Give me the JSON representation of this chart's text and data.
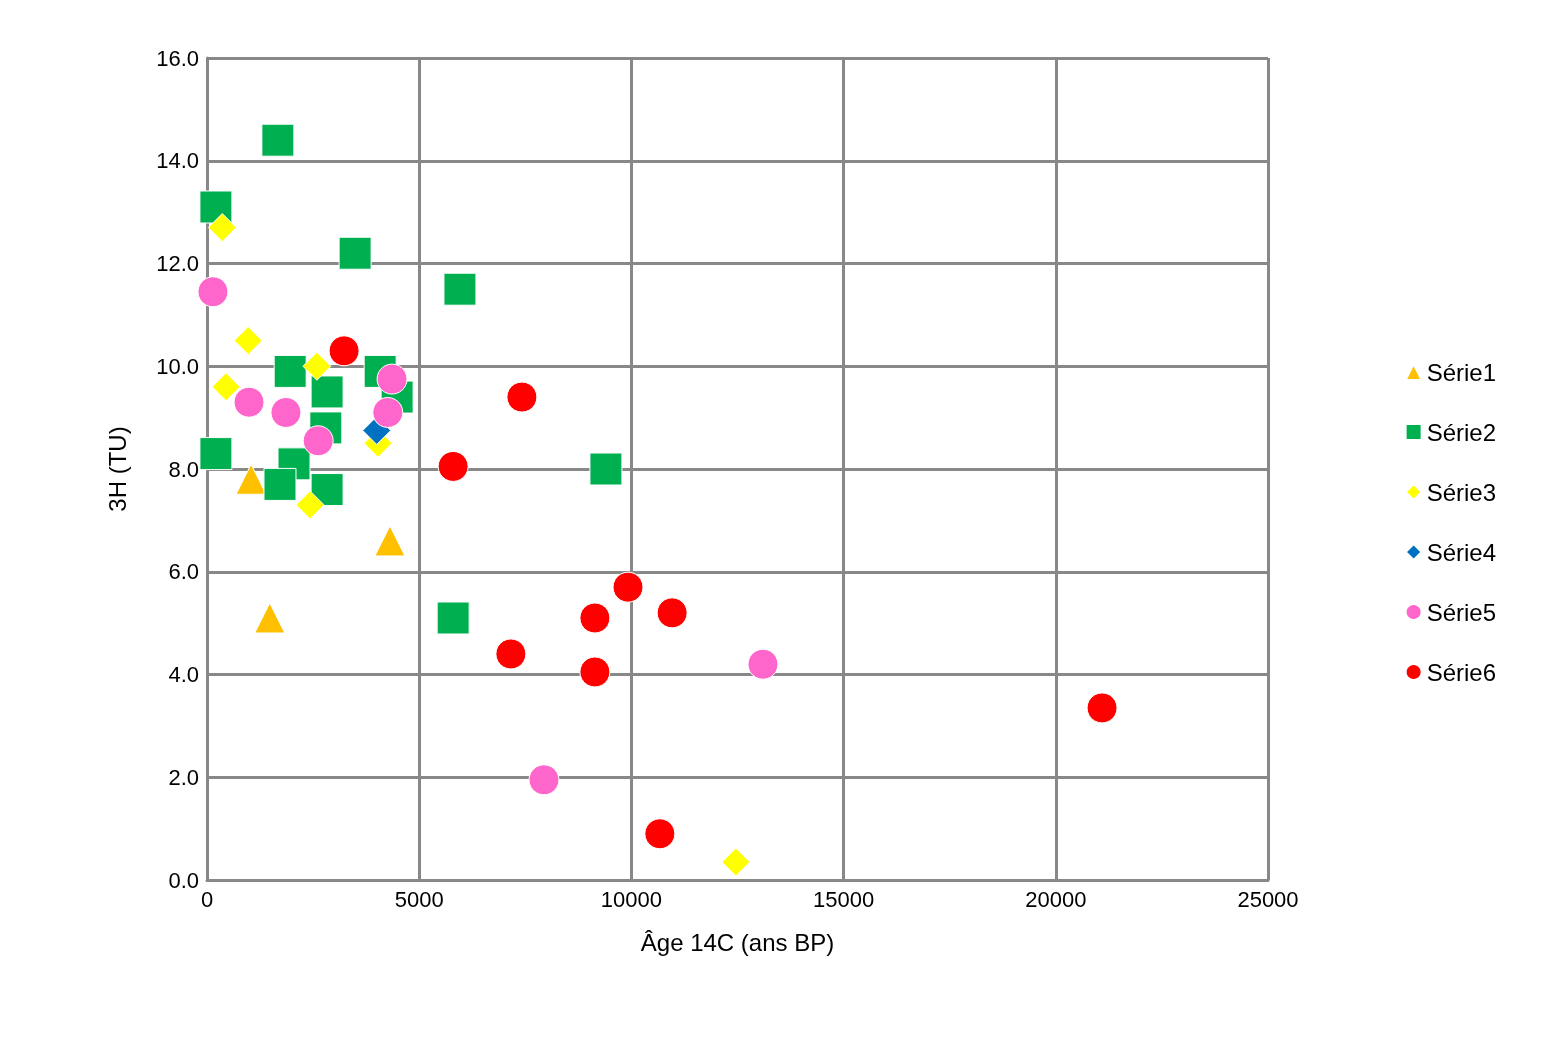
{
  "chart_data": {
    "type": "scatter",
    "xlabel": "Âge 14C (ans BP)",
    "ylabel": "3H (TU)",
    "xlim": [
      0,
      25000
    ],
    "xticks": [
      0,
      5000,
      10000,
      15000,
      20000,
      25000
    ],
    "ylim": [
      0,
      16
    ],
    "yticks": [
      {
        "value": 0,
        "label": "0.0"
      },
      {
        "value": 2,
        "label": "2.0"
      },
      {
        "value": 4,
        "label": "4.0"
      },
      {
        "value": 6,
        "label": "6.0"
      },
      {
        "value": 8,
        "label": "8.0"
      },
      {
        "value": 10,
        "label": "10.0"
      },
      {
        "value": 12,
        "label": "12.0"
      },
      {
        "value": 14,
        "label": "14.0"
      },
      {
        "value": 16,
        "label": "16.0"
      }
    ],
    "grid": true,
    "legend": "right",
    "series": [
      {
        "name": "Série1",
        "color": "#ffc000",
        "marker": "triangle",
        "x": [
          1040,
          1480,
          4310
        ],
        "values": [
          7.8,
          5.1,
          6.6
        ]
      },
      {
        "name": "Série2",
        "color": "#00b050",
        "marker": "square",
        "x": [
          1670,
          210,
          3490,
          5960,
          1960,
          4080,
          4480,
          2830,
          2800,
          210,
          2050,
          1720,
          2830,
          5800,
          9400
        ],
        "values": [
          14.4,
          13.1,
          12.2,
          11.5,
          9.9,
          9.9,
          9.4,
          9.5,
          8.8,
          8.3,
          8.1,
          7.7,
          7.6,
          5.1,
          8.0
        ]
      },
      {
        "name": "Série3",
        "color": "#ffff00",
        "marker": "diamond",
        "x": [
          360,
          970,
          450,
          2590,
          4030,
          2430,
          12460
        ],
        "values": [
          12.7,
          10.5,
          9.6,
          10.0,
          8.5,
          7.3,
          0.35
        ]
      },
      {
        "name": "Série4",
        "color": "#0070c0",
        "marker": "diamond",
        "x": [
          4000
        ],
        "values": [
          8.75
        ]
      },
      {
        "name": "Série5",
        "color": "#ff66cc",
        "marker": "circle",
        "x": [
          140,
          990,
          1860,
          2620,
          4360,
          4260,
          7940,
          13100
        ],
        "values": [
          11.45,
          9.3,
          9.1,
          8.55,
          9.75,
          9.1,
          1.95,
          4.2
        ]
      },
      {
        "name": "Série6",
        "color": "#ff0000",
        "marker": "circle",
        "x": [
          3230,
          7420,
          5800,
          9920,
          9140,
          10960,
          7160,
          9140,
          10670,
          21090
        ],
        "values": [
          10.3,
          9.4,
          8.05,
          5.7,
          5.1,
          5.2,
          4.4,
          4.05,
          0.9,
          3.35
        ]
      }
    ]
  }
}
